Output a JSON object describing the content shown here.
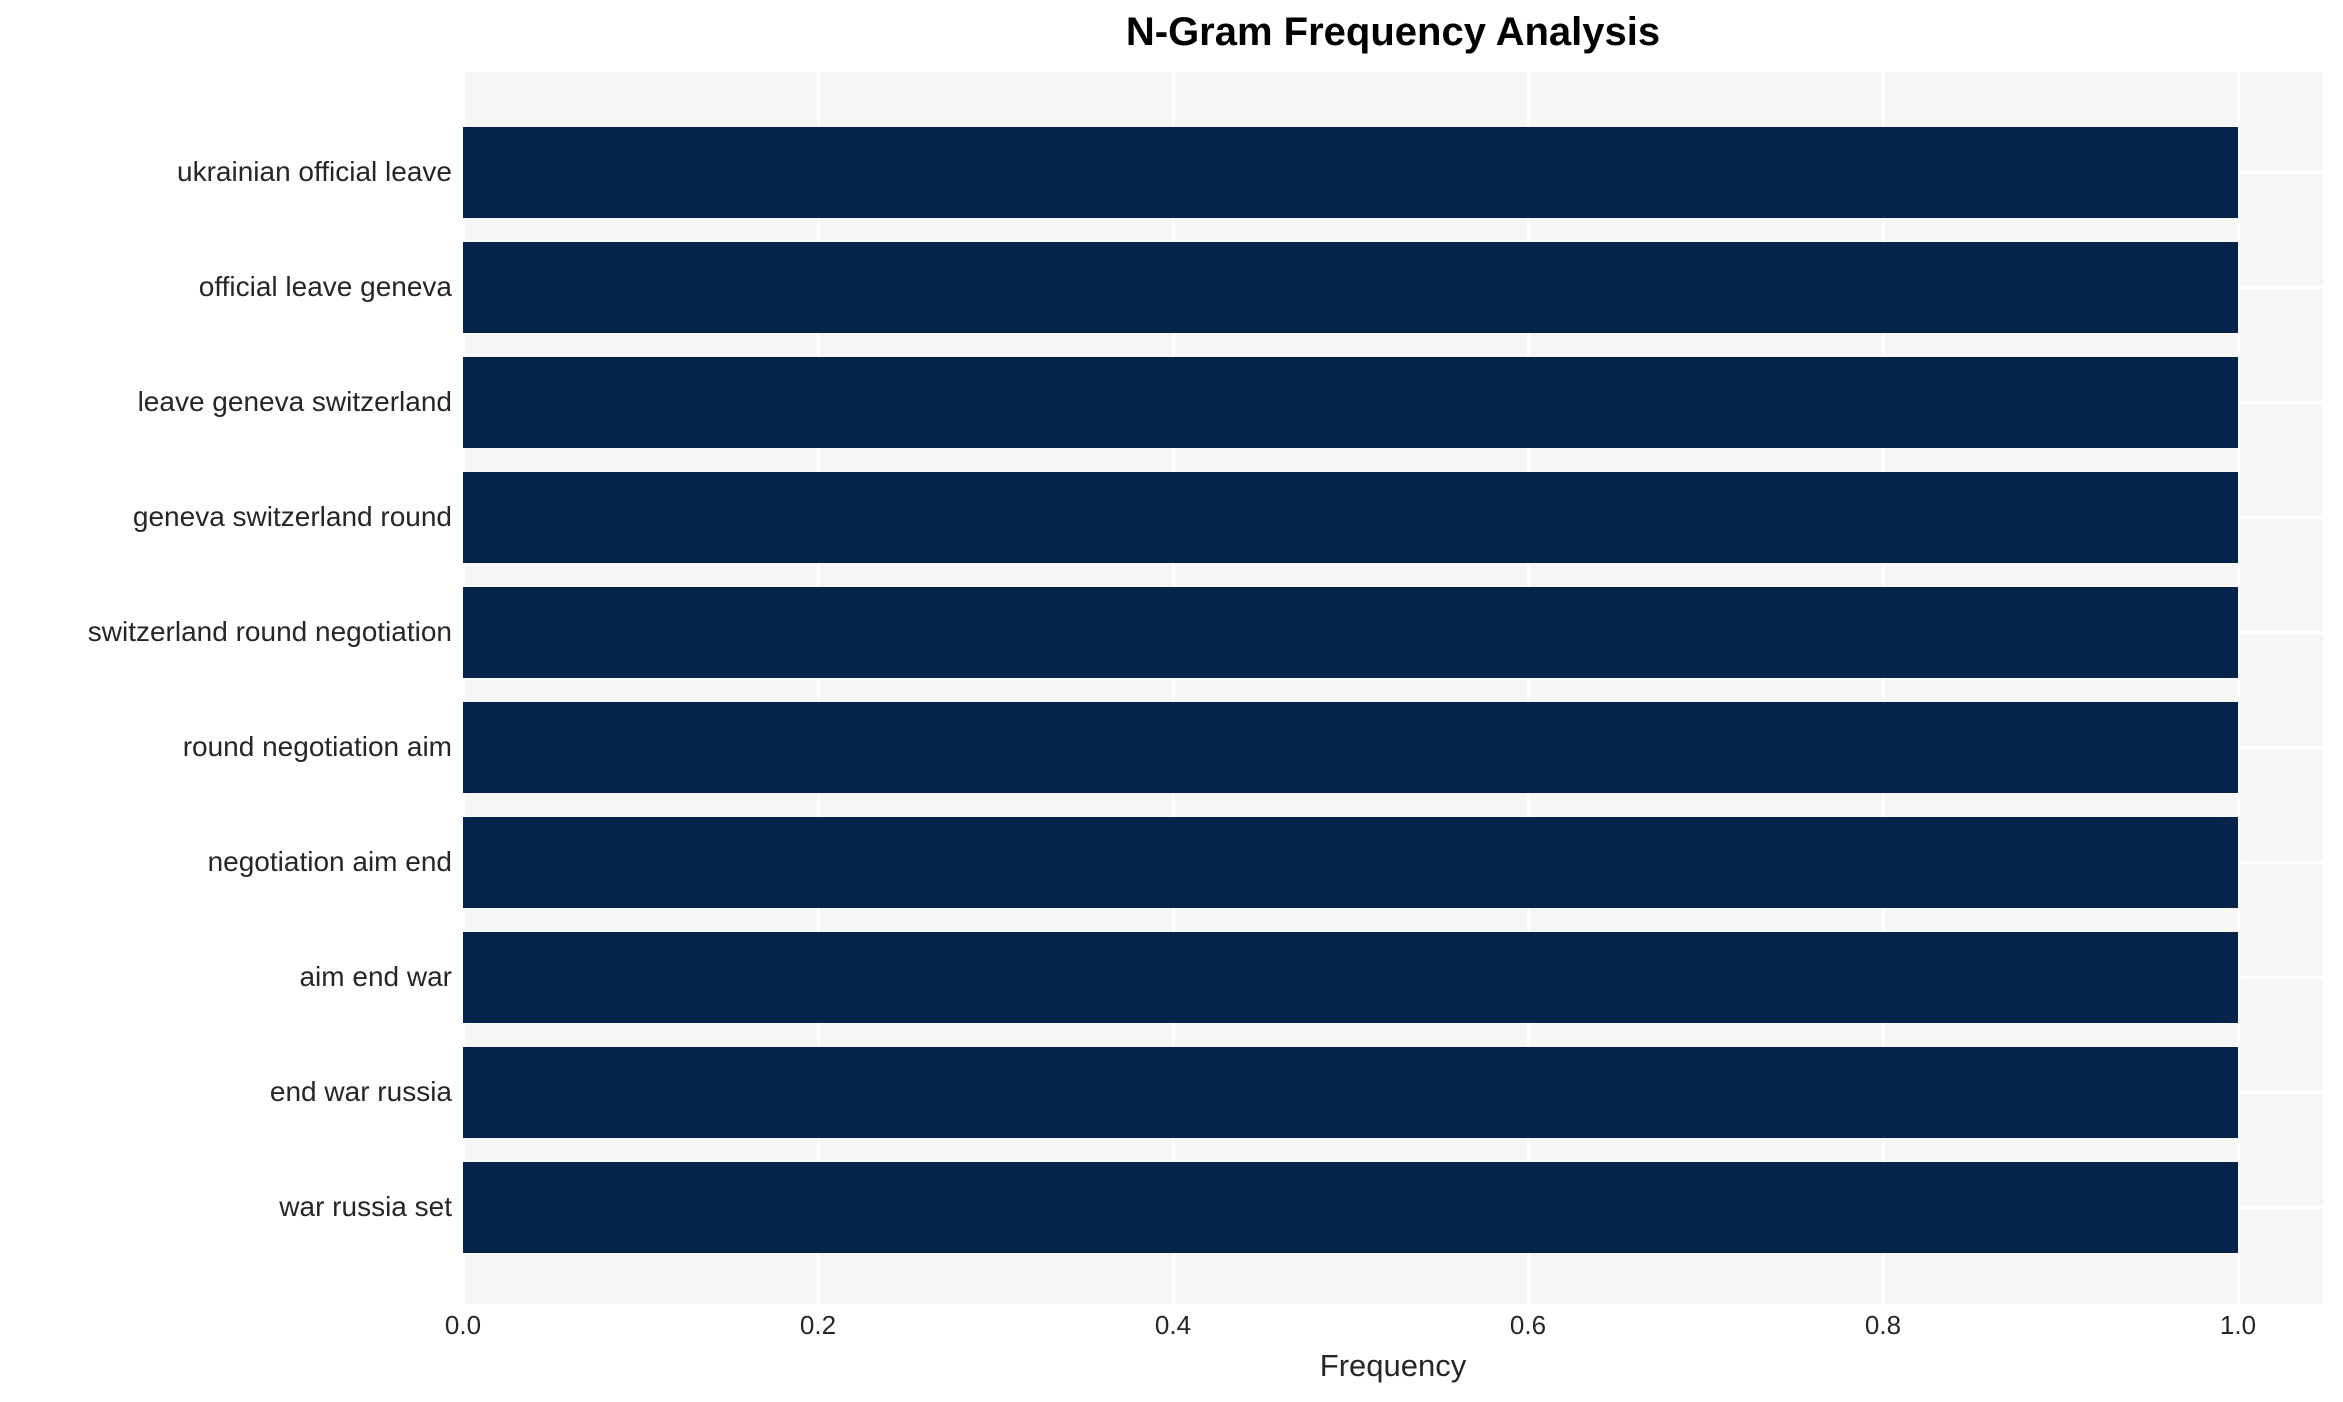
{
  "chart_data": {
    "type": "bar",
    "orientation": "horizontal",
    "title": "N-Gram Frequency Analysis",
    "xlabel": "Frequency",
    "ylabel": "",
    "categories": [
      "ukrainian official leave",
      "official leave geneva",
      "leave geneva switzerland",
      "geneva switzerland round",
      "switzerland round negotiation",
      "round negotiation aim",
      "negotiation aim end",
      "aim end war",
      "end war russia",
      "war russia set"
    ],
    "values": [
      1.0,
      1.0,
      1.0,
      1.0,
      1.0,
      1.0,
      1.0,
      1.0,
      1.0,
      1.0
    ],
    "xticks": [
      0.0,
      0.2,
      0.4,
      0.6,
      0.8,
      1.0
    ],
    "xtick_labels": [
      "0.0",
      "0.2",
      "0.4",
      "0.6",
      "0.8",
      "1.0"
    ],
    "xlim": [
      0.0,
      1.048
    ],
    "grid": true,
    "legend_position": "none",
    "colors": {
      "bar": "#062449",
      "plot_background": "#f7f7f7",
      "gridline": "#ffffff",
      "tick_label": "#262626",
      "axis_label": "#262626",
      "title": "#000000",
      "page_background": "#ffffff"
    }
  }
}
